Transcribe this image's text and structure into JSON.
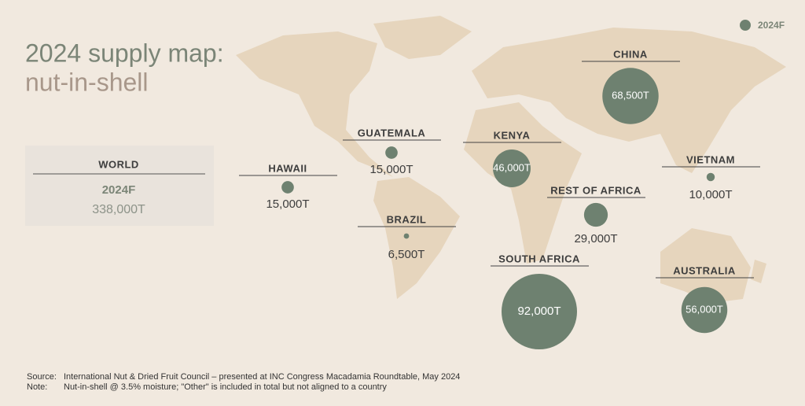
{
  "chart_data": {
    "type": "bubble-map",
    "title": "2024 supply map:",
    "subtitle": "nut-in-shell",
    "categories": [
      "HAWAII",
      "GUATEMALA",
      "BRAZIL",
      "KENYA",
      "CHINA",
      "VIETNAM",
      "REST OF AFRICA",
      "SOUTH AFRICA",
      "AUSTRALIA"
    ],
    "series": [
      {
        "name": "2024F",
        "color": "#6e8170",
        "values": [
          15000,
          15000,
          6500,
          46000,
          68500,
          10000,
          29000,
          92000,
          56000
        ],
        "value_labels": [
          "15,000T",
          "15,000T",
          "6,500T",
          "46,000T",
          "68,500T",
          "10,000T",
          "29,000T",
          "92,000T",
          "56,000T"
        ]
      }
    ],
    "total": {
      "label": "WORLD",
      "period": "2024F",
      "value": 338000,
      "value_label": "338,000T"
    },
    "notes": [
      {
        "label": "Source:",
        "text": "International Nut & Dried Fruit Council – presented at INC Congress Macadamia Roundtable, May 2024"
      },
      {
        "label": "Note:",
        "text": "Nut-in-shell @ 3.5% moisture; \"Other\" is included in total but not aligned to a country"
      }
    ]
  }
}
